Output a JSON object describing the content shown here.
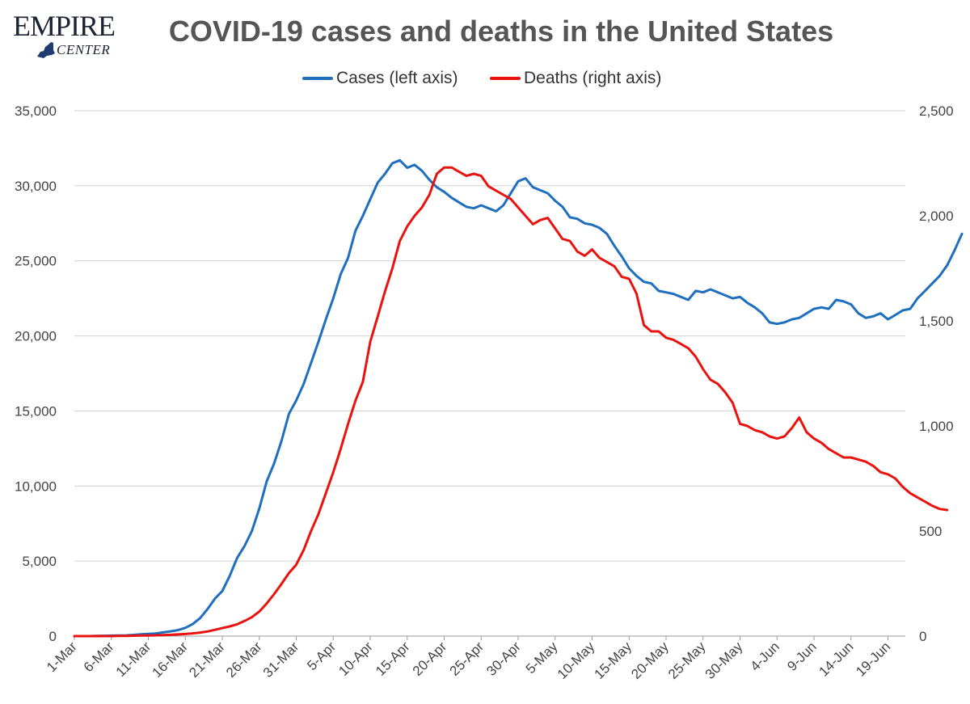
{
  "logo": {
    "word1": "EMPIRE",
    "word2": "CENTER"
  },
  "chart_data": {
    "type": "line",
    "title": "COVID-19 cases and deaths in the United States",
    "legend_placement": "top-center",
    "grid": true,
    "x_start": "1-Mar",
    "x_tick_labels": [
      "1-Mar",
      "6-Mar",
      "11-Mar",
      "16-Mar",
      "21-Mar",
      "26-Mar",
      "31-Mar",
      "5-Apr",
      "10-Apr",
      "15-Apr",
      "20-Apr",
      "25-Apr",
      "30-Apr",
      "5-May",
      "10-May",
      "15-May",
      "20-May",
      "25-May",
      "30-May",
      "4-Jun",
      "9-Jun",
      "14-Jun",
      "19-Jun"
    ],
    "y_left": {
      "ylim": [
        0,
        35000
      ],
      "ticks": [
        "0",
        "5,000",
        "10,000",
        "15,000",
        "20,000",
        "25,000",
        "30,000",
        "35,000"
      ]
    },
    "y_right": {
      "ylim": [
        0,
        2500
      ],
      "ticks": [
        "0",
        "500",
        "1,000",
        "1,500",
        "2,000",
        "2,500"
      ]
    },
    "series": [
      {
        "name": "Cases (left axis)",
        "axis": "left",
        "color": "#1f6fbe",
        "values": [
          0,
          0,
          0,
          10,
          20,
          30,
          40,
          50,
          80,
          120,
          150,
          180,
          250,
          320,
          400,
          550,
          800,
          1200,
          1800,
          2500,
          3000,
          4000,
          5200,
          6000,
          7000,
          8500,
          10300,
          11500,
          13000,
          14800,
          15700,
          16800,
          18200,
          19600,
          21100,
          22500,
          24100,
          25200,
          27000,
          28000,
          29100,
          30200,
          30800,
          31500,
          31700,
          31200,
          31400,
          31000,
          30400,
          29900,
          29600,
          29200,
          28900,
          28600,
          28500,
          28700,
          28500,
          28300,
          28700,
          29500,
          30300,
          30500,
          29900,
          29700,
          29500,
          29000,
          28600,
          27900,
          27800,
          27500,
          27400,
          27200,
          26800,
          26000,
          25300,
          24500,
          24000,
          23600,
          23500,
          23000,
          22900,
          22800,
          22600,
          22400,
          23000,
          22900,
          23100,
          22900,
          22700,
          22500,
          22600,
          22200,
          21900,
          21500,
          20900,
          20800,
          20900,
          21100,
          21200,
          21500,
          21800,
          21900,
          21800,
          22400,
          22300,
          22100,
          21500,
          21200,
          21300,
          21500,
          21100,
          21400,
          21700,
          21800,
          22500,
          23000,
          23500,
          24000,
          24700,
          25700,
          26800
        ]
      },
      {
        "name": "Deaths (right axis)",
        "axis": "right",
        "color": "#e8130f",
        "values": [
          0,
          0,
          0,
          0,
          0,
          0,
          1,
          1,
          2,
          3,
          3,
          4,
          5,
          6,
          8,
          10,
          13,
          17,
          22,
          30,
          38,
          46,
          56,
          72,
          90,
          117,
          155,
          200,
          248,
          300,
          340,
          410,
          500,
          580,
          680,
          780,
          890,
          1010,
          1120,
          1210,
          1400,
          1520,
          1640,
          1750,
          1880,
          1950,
          2000,
          2040,
          2100,
          2200,
          2230,
          2230,
          2210,
          2190,
          2200,
          2190,
          2140,
          2120,
          2100,
          2080,
          2040,
          2000,
          1960,
          1980,
          1990,
          1940,
          1890,
          1880,
          1830,
          1810,
          1840,
          1800,
          1780,
          1760,
          1710,
          1700,
          1630,
          1480,
          1450,
          1450,
          1420,
          1410,
          1390,
          1370,
          1330,
          1270,
          1220,
          1200,
          1160,
          1110,
          1010,
          1000,
          980,
          970,
          950,
          940,
          950,
          990,
          1040,
          970,
          940,
          920,
          890,
          870,
          850,
          850,
          840,
          830,
          810,
          780,
          770,
          750,
          710,
          680,
          660,
          640,
          620,
          605,
          600
        ]
      }
    ]
  }
}
